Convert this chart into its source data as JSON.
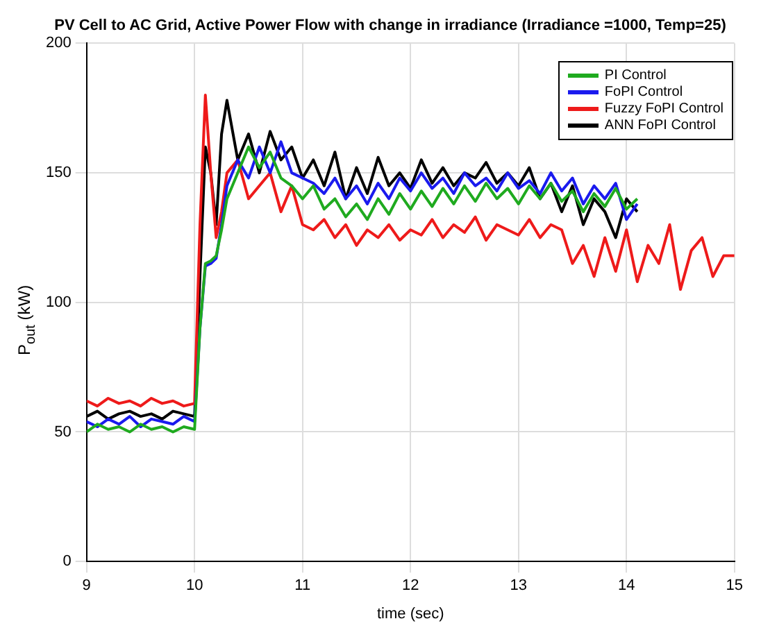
{
  "chart_data": {
    "type": "line",
    "title": "PV Cell to AC Grid, Active Power Flow with change in irradiance (Irradiance =1000, Temp=25)",
    "xlabel": "time (sec)",
    "ylabel": "P$_{out}$ (kW)",
    "x": [
      9,
      9.1,
      9.2,
      9.3,
      9.4,
      9.5,
      9.6,
      9.7,
      9.8,
      9.9,
      10,
      10.05,
      10.1,
      10.15,
      10.2,
      10.25,
      10.3,
      10.4,
      10.5,
      10.6,
      10.7,
      10.8,
      10.9,
      11,
      11.1,
      11.2,
      11.3,
      11.4,
      11.5,
      11.6,
      11.7,
      11.8,
      11.9,
      12,
      12.1,
      12.2,
      12.3,
      12.4,
      12.5,
      12.6,
      12.7,
      12.8,
      12.9,
      13,
      13.1,
      13.2,
      13.3,
      13.4,
      13.5,
      13.6,
      13.7,
      13.8,
      13.9,
      14,
      14.1,
      14.2,
      14.3,
      14.4,
      14.5,
      14.6,
      14.7,
      14.8,
      14.9,
      15
    ],
    "series": [
      {
        "name": "PI Control",
        "color": "#1faa1f",
        "values": [
          50,
          53,
          51,
          52,
          50,
          53,
          51,
          52,
          50,
          52,
          51,
          90,
          115,
          116,
          118,
          128,
          140,
          150,
          160,
          152,
          158,
          148,
          145,
          140,
          145,
          136,
          140,
          133,
          138,
          132,
          140,
          134,
          142,
          136,
          143,
          137,
          144,
          138,
          145,
          139,
          146,
          140,
          144,
          138,
          145,
          140,
          146,
          139,
          143,
          135,
          142,
          137,
          144,
          136,
          140,
          null,
          null,
          null,
          null,
          null,
          null,
          null,
          null,
          null
        ]
      },
      {
        "name": "FoPI Control",
        "color": "#1a1aee",
        "values": [
          54,
          52,
          55,
          53,
          56,
          52,
          55,
          54,
          53,
          56,
          54,
          90,
          114,
          115,
          117,
          130,
          145,
          155,
          148,
          160,
          150,
          162,
          150,
          148,
          146,
          142,
          148,
          140,
          145,
          138,
          146,
          140,
          148,
          143,
          150,
          144,
          148,
          142,
          150,
          145,
          148,
          143,
          150,
          144,
          147,
          142,
          150,
          143,
          148,
          138,
          145,
          140,
          146,
          132,
          138,
          null,
          null,
          null,
          null,
          null,
          null,
          null,
          null,
          null
        ]
      },
      {
        "name": "Fuzzy FoPI Control",
        "color": "#ee1a1a",
        "values": [
          62,
          60,
          63,
          61,
          62,
          60,
          63,
          61,
          62,
          60,
          61,
          130,
          180,
          150,
          125,
          135,
          150,
          155,
          140,
          145,
          150,
          135,
          145,
          130,
          128,
          132,
          125,
          130,
          122,
          128,
          125,
          130,
          124,
          128,
          126,
          132,
          125,
          130,
          127,
          133,
          124,
          130,
          128,
          126,
          132,
          125,
          130,
          128,
          115,
          122,
          110,
          125,
          112,
          128,
          108,
          122,
          115,
          130,
          105,
          120,
          125,
          110,
          118,
          118
        ]
      },
      {
        "name": "ANN FoPI Control",
        "color": "#000000",
        "values": [
          56,
          58,
          55,
          57,
          58,
          56,
          57,
          55,
          58,
          57,
          56,
          110,
          160,
          150,
          130,
          165,
          178,
          155,
          165,
          150,
          166,
          155,
          160,
          148,
          155,
          145,
          158,
          140,
          152,
          142,
          156,
          145,
          150,
          144,
          155,
          146,
          152,
          145,
          150,
          148,
          154,
          146,
          150,
          145,
          152,
          140,
          146,
          135,
          145,
          130,
          140,
          135,
          125,
          140,
          135,
          null,
          null,
          null,
          null,
          null,
          null,
          null,
          null,
          null
        ]
      }
    ],
    "xlim": [
      9,
      15
    ],
    "xticks": [
      9,
      10,
      11,
      12,
      13,
      14,
      15
    ],
    "ylim": [
      0,
      200
    ],
    "yticks": [
      0,
      50,
      100,
      150,
      200
    ],
    "grid": true,
    "legend": "top right"
  }
}
